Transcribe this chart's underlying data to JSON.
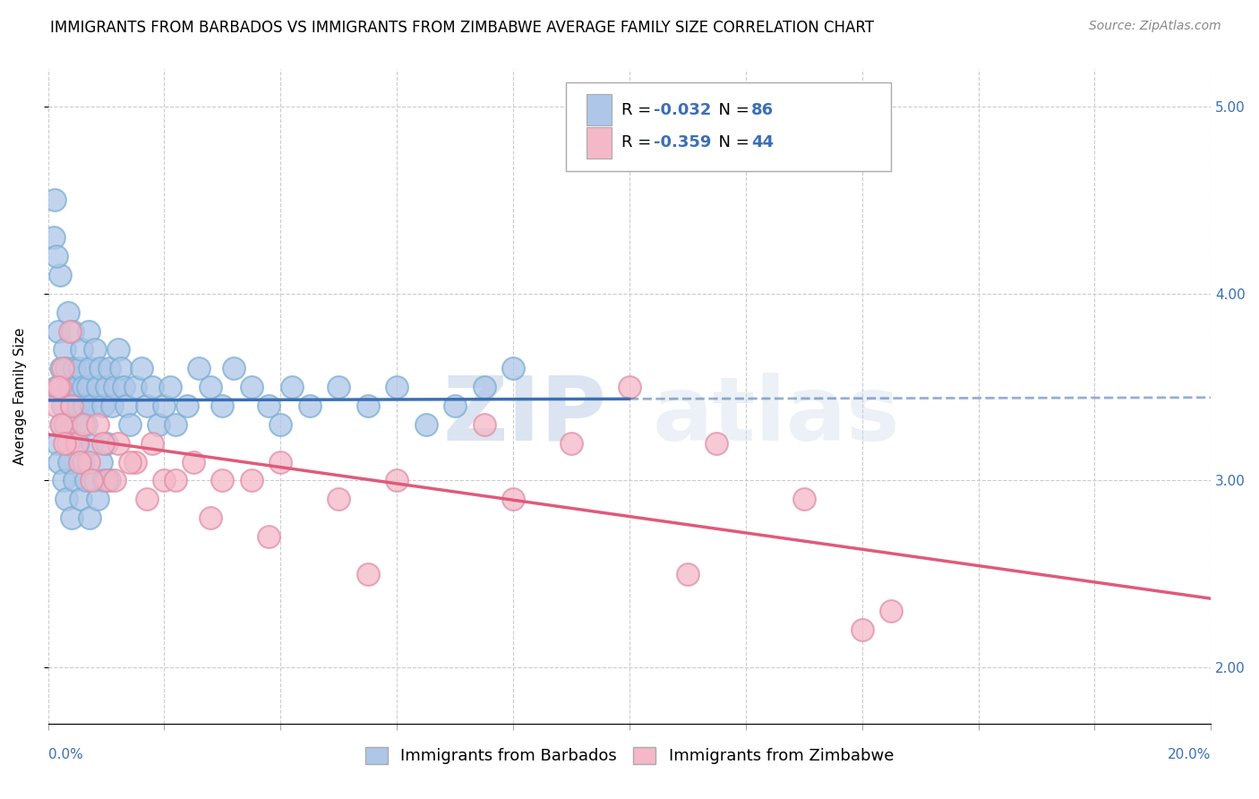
{
  "title": "IMMIGRANTS FROM BARBADOS VS IMMIGRANTS FROM ZIMBABWE AVERAGE FAMILY SIZE CORRELATION CHART",
  "source": "Source: ZipAtlas.com",
  "ylabel": "Average Family Size",
  "xmin": 0.0,
  "xmax": 20.0,
  "ymin": 1.7,
  "ymax": 5.2,
  "yticks": [
    2.0,
    3.0,
    4.0,
    5.0
  ],
  "xticks": [
    0.0,
    2.0,
    4.0,
    6.0,
    8.0,
    10.0,
    12.0,
    14.0,
    16.0,
    18.0,
    20.0
  ],
  "series": [
    {
      "label": "Immigrants from Barbados",
      "R": -0.032,
      "N": 86,
      "color": "#aec6e8",
      "line_color": "#3b6fb5",
      "marker_edge": "#7bafd4"
    },
    {
      "label": "Immigrants from Zimbabwe",
      "R": -0.359,
      "N": 44,
      "color": "#f4b8c8",
      "line_color": "#e05a7a",
      "marker_edge": "#e090a8"
    }
  ],
  "watermark_zip": "ZIP",
  "watermark_atlas": "atlas",
  "background_color": "#ffffff",
  "grid_color": "#cccccc",
  "title_fontsize": 12,
  "axis_label_fontsize": 11,
  "tick_fontsize": 11,
  "legend_fontsize": 13,
  "source_fontsize": 10,
  "barbados_x": [
    0.15,
    0.18,
    0.2,
    0.22,
    0.25,
    0.28,
    0.3,
    0.32,
    0.35,
    0.38,
    0.4,
    0.42,
    0.45,
    0.48,
    0.5,
    0.52,
    0.55,
    0.58,
    0.6,
    0.62,
    0.65,
    0.68,
    0.7,
    0.72,
    0.75,
    0.8,
    0.85,
    0.9,
    0.95,
    1.0,
    1.05,
    1.1,
    1.15,
    1.2,
    1.25,
    1.3,
    1.35,
    1.4,
    1.5,
    1.6,
    1.7,
    1.8,
    1.9,
    2.0,
    2.1,
    2.2,
    2.4,
    2.6,
    2.8,
    3.0,
    3.2,
    3.5,
    3.8,
    4.0,
    4.2,
    4.5,
    5.0,
    5.5,
    6.0,
    6.5,
    7.0,
    7.5,
    8.0,
    0.1,
    0.12,
    0.14,
    0.16,
    0.19,
    0.23,
    0.27,
    0.31,
    0.36,
    0.41,
    0.46,
    0.51,
    0.56,
    0.61,
    0.66,
    0.71,
    0.76,
    0.81,
    0.86,
    0.91,
    0.96,
    1.01,
    1.06
  ],
  "barbados_y": [
    3.5,
    3.8,
    4.1,
    3.6,
    3.4,
    3.7,
    3.3,
    3.6,
    3.9,
    3.5,
    3.4,
    3.8,
    3.6,
    3.3,
    3.5,
    3.4,
    3.6,
    3.7,
    3.5,
    3.4,
    3.3,
    3.5,
    3.8,
    3.6,
    3.4,
    3.7,
    3.5,
    3.6,
    3.4,
    3.5,
    3.6,
    3.4,
    3.5,
    3.7,
    3.6,
    3.5,
    3.4,
    3.3,
    3.5,
    3.6,
    3.4,
    3.5,
    3.3,
    3.4,
    3.5,
    3.3,
    3.4,
    3.6,
    3.5,
    3.4,
    3.6,
    3.5,
    3.4,
    3.3,
    3.5,
    3.4,
    3.5,
    3.4,
    3.5,
    3.3,
    3.4,
    3.5,
    3.6,
    4.3,
    4.5,
    4.2,
    3.2,
    3.1,
    3.3,
    3.0,
    2.9,
    3.1,
    2.8,
    3.0,
    3.2,
    2.9,
    3.1,
    3.0,
    2.8,
    3.2,
    3.0,
    2.9,
    3.1,
    3.0,
    3.2,
    3.0
  ],
  "zimbabwe_x": [
    0.15,
    0.2,
    0.25,
    0.3,
    0.35,
    0.4,
    0.5,
    0.6,
    0.7,
    0.85,
    1.0,
    1.2,
    1.5,
    1.8,
    2.0,
    2.5,
    3.0,
    3.5,
    4.0,
    5.0,
    6.0,
    7.5,
    9.0,
    10.0,
    11.5,
    13.0,
    14.5,
    0.18,
    0.22,
    0.28,
    0.38,
    0.55,
    0.75,
    0.95,
    1.15,
    1.4,
    1.7,
    2.2,
    2.8,
    3.8,
    5.5,
    8.0,
    11.0,
    14.0
  ],
  "zimbabwe_y": [
    3.4,
    3.5,
    3.6,
    3.3,
    3.2,
    3.4,
    3.2,
    3.3,
    3.1,
    3.3,
    3.0,
    3.2,
    3.1,
    3.2,
    3.0,
    3.1,
    3.0,
    3.0,
    3.1,
    2.9,
    3.0,
    3.3,
    3.2,
    3.5,
    3.2,
    2.9,
    2.3,
    3.5,
    3.3,
    3.2,
    3.8,
    3.1,
    3.0,
    3.2,
    3.0,
    3.1,
    2.9,
    3.0,
    2.8,
    2.7,
    2.5,
    2.9,
    2.5,
    2.2
  ]
}
